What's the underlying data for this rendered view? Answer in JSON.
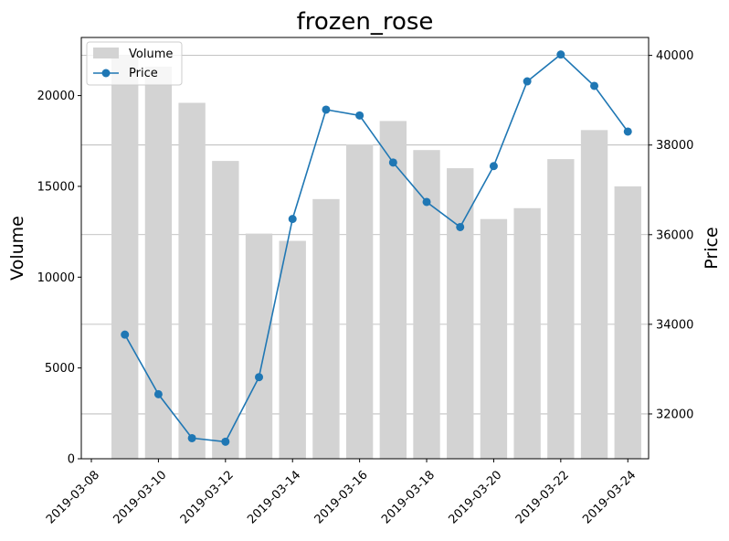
{
  "chart_data": {
    "type": "bar+line",
    "title": "frozen_rose",
    "ylabel_left": "Volume",
    "ylabel_right": "Price",
    "xlabel": "",
    "x": [
      "2019-03-09",
      "2019-03-10",
      "2019-03-11",
      "2019-03-12",
      "2019-03-13",
      "2019-03-14",
      "2019-03-15",
      "2019-03-16",
      "2019-03-17",
      "2019-03-18",
      "2019-03-19",
      "2019-03-20",
      "2019-03-21",
      "2019-03-22",
      "2019-03-23",
      "2019-03-24"
    ],
    "x_ticks": [
      "2019-03-08",
      "2019-03-10",
      "2019-03-12",
      "2019-03-14",
      "2019-03-16",
      "2019-03-18",
      "2019-03-20",
      "2019-03-22",
      "2019-03-24"
    ],
    "xlim": [
      "2019-03-08",
      "2019-03-24"
    ],
    "series": [
      {
        "name": "Volume",
        "kind": "bar",
        "axis": "left",
        "color": "#d3d3d3",
        "values": [
          22200,
          21600,
          19600,
          16400,
          12400,
          12000,
          14300,
          17300,
          18600,
          17000,
          16000,
          13200,
          13800,
          16500,
          18100,
          15000
        ]
      },
      {
        "name": "Price",
        "kind": "line",
        "axis": "right",
        "color": "#1f77b4",
        "marker": "circle",
        "values": [
          33770,
          32440,
          31460,
          31380,
          32820,
          36350,
          38790,
          38660,
          37610,
          36730,
          36170,
          37530,
          39420,
          40020,
          39320,
          38300
        ]
      }
    ],
    "y_left": {
      "ylim": [
        0,
        23200
      ],
      "ticks": [
        "0",
        "5000",
        "10000",
        "15000",
        "20000"
      ]
    },
    "y_right": {
      "ylim": [
        31000,
        40400
      ],
      "ticks": [
        "32000",
        "34000",
        "36000",
        "38000",
        "40000"
      ]
    },
    "grid": "horizontal (right axis)",
    "legend": {
      "position": "top-left",
      "entries": [
        "Volume",
        "Price"
      ]
    }
  }
}
